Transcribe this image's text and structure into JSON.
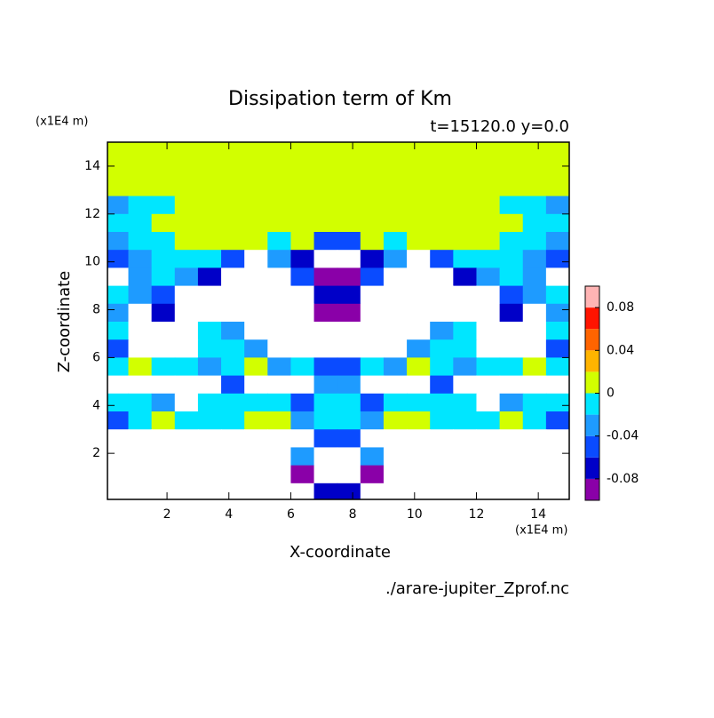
{
  "chart_data": {
    "type": "contour",
    "title": "Dissipation term of Km",
    "subtitle": "t=15120.0 y=0.0",
    "x_label": "X-coordinate",
    "y_label": "Z-coordinate",
    "x_unit": "(x1E4 m)",
    "y_unit": "(x1E4 m)",
    "source": "./arare-jupiter_Zprof.nc",
    "xlim": [
      0.075,
      15
    ],
    "ylim": [
      0.075,
      15
    ],
    "xticks": [
      2,
      4,
      6,
      8,
      10,
      12,
      14
    ],
    "yticks": [
      2,
      4,
      6,
      8,
      10,
      12,
      14
    ],
    "x": [
      0.375,
      1.125,
      1.875,
      2.625,
      3.375,
      4.125,
      4.875,
      5.625,
      6.375,
      7.125,
      7.875,
      8.625,
      9.375,
      10.125,
      10.875,
      11.625,
      12.375,
      13.125,
      13.875,
      14.625
    ],
    "y": [
      14.625,
      13.875,
      13.125,
      12.375,
      11.625,
      10.875,
      10.125,
      9.375,
      8.625,
      7.875,
      7.125,
      6.375,
      5.625,
      4.875,
      4.125,
      3.375,
      2.625,
      1.875,
      1.125,
      0.375
    ],
    "z": [
      [
        0.01,
        0.01,
        0.01,
        0.01,
        0.01,
        0.01,
        0.01,
        0.01,
        0.01,
        0.01,
        0.01,
        0.01,
        0.01,
        0.01,
        0.01,
        0.01,
        0.01,
        0.01,
        0.01,
        0.01
      ],
      [
        0.01,
        0.01,
        0.01,
        0.01,
        0.01,
        0.01,
        0.01,
        0.01,
        0.01,
        0.01,
        0.01,
        0.01,
        0.01,
        0.01,
        0.01,
        0.01,
        0.01,
        0.01,
        0.01,
        0.01
      ],
      [
        0.01,
        0.01,
        0.01,
        0.01,
        0.01,
        0.01,
        0.01,
        0.01,
        0.01,
        0.01,
        0.01,
        0.01,
        0.01,
        0.01,
        0.01,
        0.01,
        0.01,
        0.01,
        0.01,
        0.01
      ],
      [
        -0.03,
        -0.01,
        -0.01,
        0.01,
        0.01,
        0.01,
        0.01,
        0.01,
        0.01,
        0.01,
        0.01,
        0.01,
        0.01,
        0.01,
        0.01,
        0.01,
        0.01,
        -0.01,
        -0.01,
        -0.03
      ],
      [
        -0.01,
        -0.01,
        0.01,
        0.01,
        0.01,
        0.01,
        0.01,
        0.01,
        0.01,
        0.01,
        0.01,
        0.01,
        0.01,
        0.01,
        0.01,
        0.01,
        0.01,
        0.01,
        -0.01,
        -0.01
      ],
      [
        -0.03,
        -0.01,
        -0.01,
        0.01,
        0.01,
        0.01,
        0.01,
        -0.01,
        0.01,
        -0.05,
        -0.05,
        0.01,
        -0.01,
        0.01,
        0.01,
        0.01,
        0.01,
        -0.01,
        -0.01,
        -0.03
      ],
      [
        -0.05,
        -0.03,
        -0.01,
        -0.01,
        -0.01,
        -0.05,
        -0.11,
        -0.03,
        -0.07,
        -0.11,
        -0.11,
        -0.07,
        -0.03,
        -0.11,
        -0.05,
        -0.01,
        -0.01,
        -0.01,
        -0.03,
        -0.05
      ],
      [
        -0.11,
        -0.03,
        -0.01,
        -0.03,
        -0.07,
        -0.11,
        -0.11,
        -0.11,
        -0.05,
        -0.09,
        -0.09,
        -0.05,
        -0.11,
        -0.11,
        -0.11,
        -0.07,
        -0.03,
        -0.01,
        -0.03,
        -0.11
      ],
      [
        -0.01,
        -0.03,
        -0.05,
        -0.11,
        -0.11,
        -0.11,
        -0.11,
        -0.11,
        -0.11,
        -0.07,
        -0.07,
        -0.11,
        -0.11,
        -0.11,
        -0.11,
        -0.11,
        -0.11,
        -0.05,
        -0.03,
        -0.01
      ],
      [
        -0.03,
        -0.11,
        -0.07,
        -0.11,
        -0.11,
        -0.11,
        -0.11,
        -0.11,
        -0.11,
        -0.09,
        -0.09,
        -0.11,
        -0.11,
        -0.11,
        -0.11,
        -0.11,
        -0.11,
        -0.07,
        -0.11,
        -0.03
      ],
      [
        -0.01,
        -0.11,
        -0.11,
        -0.11,
        -0.01,
        -0.03,
        -0.11,
        -0.11,
        -0.11,
        -0.11,
        -0.11,
        -0.11,
        -0.11,
        -0.11,
        -0.03,
        -0.01,
        -0.11,
        -0.11,
        -0.11,
        -0.01
      ],
      [
        -0.05,
        -0.11,
        -0.11,
        -0.11,
        -0.01,
        -0.01,
        -0.03,
        -0.11,
        -0.11,
        -0.11,
        -0.11,
        -0.11,
        -0.11,
        -0.03,
        -0.01,
        -0.01,
        -0.11,
        -0.11,
        -0.11,
        -0.05
      ],
      [
        -0.01,
        0.01,
        -0.01,
        -0.01,
        -0.03,
        -0.01,
        0.01,
        -0.03,
        -0.01,
        -0.05,
        -0.05,
        -0.01,
        -0.03,
        0.01,
        -0.01,
        -0.03,
        -0.01,
        -0.01,
        0.01,
        -0.01
      ],
      [
        -0.11,
        -0.11,
        -0.11,
        -0.11,
        -0.11,
        -0.05,
        -0.11,
        -0.11,
        -0.11,
        -0.03,
        -0.03,
        -0.11,
        -0.11,
        -0.11,
        -0.05,
        -0.11,
        -0.11,
        -0.11,
        -0.11,
        -0.11
      ],
      [
        -0.01,
        -0.01,
        -0.03,
        -0.11,
        -0.01,
        -0.01,
        -0.01,
        -0.01,
        -0.05,
        -0.01,
        -0.01,
        -0.05,
        -0.01,
        -0.01,
        -0.01,
        -0.01,
        -0.11,
        -0.03,
        -0.01,
        -0.01
      ],
      [
        -0.05,
        -0.01,
        0.01,
        -0.01,
        -0.01,
        -0.01,
        0.01,
        0.01,
        -0.03,
        -0.01,
        -0.01,
        -0.03,
        0.01,
        0.01,
        -0.01,
        -0.01,
        -0.01,
        0.01,
        -0.01,
        -0.05
      ],
      [
        -0.11,
        -0.11,
        -0.11,
        -0.11,
        -0.11,
        -0.11,
        -0.11,
        -0.11,
        -0.11,
        -0.05,
        -0.05,
        -0.11,
        -0.11,
        -0.11,
        -0.11,
        -0.11,
        -0.11,
        -0.11,
        -0.11,
        -0.11
      ],
      [
        -0.11,
        -0.11,
        -0.11,
        -0.11,
        -0.11,
        -0.11,
        -0.11,
        -0.11,
        -0.03,
        -0.11,
        -0.11,
        -0.03,
        -0.11,
        -0.11,
        -0.11,
        -0.11,
        -0.11,
        -0.11,
        -0.11,
        -0.11
      ],
      [
        -0.11,
        -0.11,
        -0.11,
        -0.11,
        -0.11,
        -0.11,
        -0.11,
        -0.11,
        -0.09,
        -0.11,
        -0.11,
        -0.09,
        -0.11,
        -0.11,
        -0.11,
        -0.11,
        -0.11,
        -0.11,
        -0.11,
        -0.11
      ],
      [
        -0.11,
        -0.11,
        -0.11,
        -0.11,
        -0.11,
        -0.11,
        -0.11,
        -0.11,
        -0.11,
        -0.07,
        -0.07,
        -0.11,
        -0.11,
        -0.11,
        -0.11,
        -0.11,
        -0.11,
        -0.11,
        -0.11,
        -0.11
      ]
    ],
    "colorbar": {
      "levels": [
        -0.1,
        -0.08,
        -0.06,
        -0.04,
        -0.02,
        0,
        0.02,
        0.04,
        0.06,
        0.08,
        0.1
      ],
      "colors": [
        "#8a00a8",
        "#0000c8",
        "#0a4bff",
        "#1e9bff",
        "#00e6ff",
        "#d2ff00",
        "#ffb400",
        "#ff6400",
        "#ff1400",
        "#ffb4b4"
      ],
      "under_color": "#ffffff",
      "ticks": [
        0.08,
        0.04,
        0,
        -0.04,
        -0.08
      ]
    }
  }
}
